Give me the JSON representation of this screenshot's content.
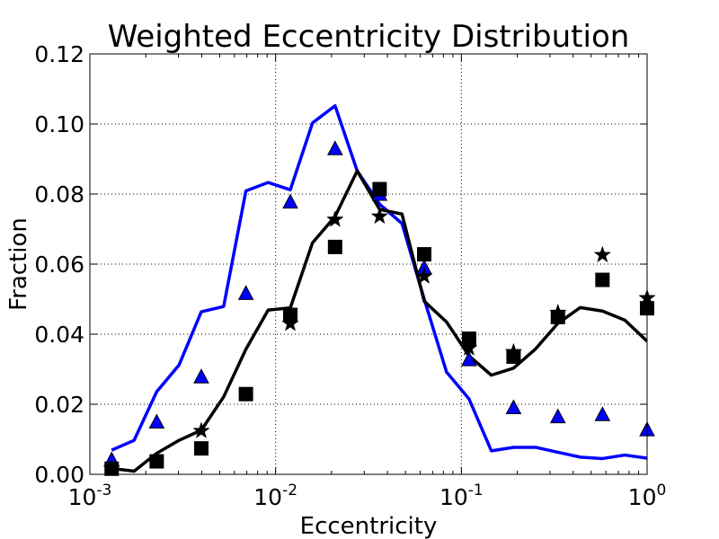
{
  "chart_data": {
    "type": "line",
    "title": "Weighted Eccentricity Distribution",
    "xlabel": "Eccentricity",
    "ylabel": "Fraction",
    "xscale": "log",
    "xlim": [
      0.001,
      1
    ],
    "ylim": [
      0,
      0.12
    ],
    "grid": true,
    "colors": {
      "blue": "#0000ff",
      "black": "#000000",
      "grid": "#000000"
    },
    "x_ticks": [
      {
        "value": 0.001,
        "base": "10",
        "exp": "-3"
      },
      {
        "value": 0.01,
        "base": "10",
        "exp": "-2"
      },
      {
        "value": 0.1,
        "base": "10",
        "exp": "-1"
      },
      {
        "value": 1,
        "base": "10",
        "exp": "0"
      }
    ],
    "y_ticks": [
      {
        "value": 0,
        "label": "0.00"
      },
      {
        "value": 0.02,
        "label": "0.02"
      },
      {
        "value": 0.04,
        "label": "0.04"
      },
      {
        "value": 0.06,
        "label": "0.06"
      },
      {
        "value": 0.08,
        "label": "0.08"
      },
      {
        "value": 0.1,
        "label": "0.10"
      },
      {
        "value": 0.12,
        "label": "0.12"
      }
    ],
    "series": [
      {
        "name": "blue-line",
        "kind": "line",
        "color": "#0000ff",
        "x": [
          0.00131,
          0.00173,
          0.00229,
          0.00302,
          0.00398,
          0.00525,
          0.00692,
          0.00912,
          0.012,
          0.0158,
          0.0209,
          0.0275,
          0.0363,
          0.0479,
          0.0631,
          0.0832,
          0.11,
          0.145,
          0.191,
          0.251,
          0.331,
          0.437,
          0.575,
          0.759,
          1.0
        ],
        "values": [
          0.0069,
          0.0097,
          0.0236,
          0.0312,
          0.0464,
          0.0479,
          0.0809,
          0.0833,
          0.0812,
          0.1003,
          0.1052,
          0.0866,
          0.0771,
          0.0716,
          0.05,
          0.0292,
          0.0215,
          0.0067,
          0.0077,
          0.0077,
          0.0063,
          0.0049,
          0.0045,
          0.0055,
          0.0046
        ]
      },
      {
        "name": "black-line",
        "kind": "line",
        "color": "#000000",
        "x": [
          0.00131,
          0.00173,
          0.00229,
          0.00302,
          0.00398,
          0.00525,
          0.00692,
          0.00912,
          0.012,
          0.0158,
          0.0209,
          0.0275,
          0.0363,
          0.0479,
          0.0631,
          0.0832,
          0.11,
          0.145,
          0.191,
          0.251,
          0.331,
          0.437,
          0.575,
          0.759,
          1.0
        ],
        "values": [
          0.0017,
          0.0009,
          0.006,
          0.0097,
          0.0126,
          0.0221,
          0.0357,
          0.0469,
          0.0475,
          0.0661,
          0.0736,
          0.0866,
          0.0756,
          0.0743,
          0.0494,
          0.0435,
          0.0338,
          0.0283,
          0.0303,
          0.0358,
          0.0431,
          0.0476,
          0.0466,
          0.044,
          0.038
        ]
      },
      {
        "name": "triangles",
        "kind": "marker",
        "marker": "triangle",
        "color": "#0000ff",
        "x": [
          0.00131,
          0.00229,
          0.00398,
          0.00692,
          0.012,
          0.0209,
          0.0363,
          0.0631,
          0.11,
          0.191,
          0.331,
          0.575,
          1.0
        ],
        "values": [
          0.0042,
          0.015,
          0.0279,
          0.0517,
          0.0778,
          0.093,
          0.08,
          0.059,
          0.0328,
          0.0191,
          0.0165,
          0.0171,
          0.0128
        ]
      },
      {
        "name": "squares",
        "kind": "marker",
        "marker": "square",
        "color": "#000000",
        "x": [
          0.00131,
          0.00229,
          0.00398,
          0.00692,
          0.012,
          0.0209,
          0.0363,
          0.0631,
          0.11,
          0.191,
          0.331,
          0.575,
          1.0
        ],
        "values": [
          0.0016,
          0.0037,
          0.0074,
          0.0229,
          0.0455,
          0.0649,
          0.0814,
          0.0628,
          0.0387,
          0.0336,
          0.0449,
          0.0555,
          0.0474
        ]
      },
      {
        "name": "stars",
        "kind": "marker",
        "marker": "star",
        "color": "#000000",
        "x": [
          0.00131,
          0.00398,
          0.012,
          0.0209,
          0.0363,
          0.0631,
          0.11,
          0.191,
          0.331,
          0.575,
          1.0
        ],
        "values": [
          0.0017,
          0.0124,
          0.043,
          0.0727,
          0.0736,
          0.0565,
          0.036,
          0.0349,
          0.0461,
          0.0626,
          0.0503
        ]
      }
    ]
  }
}
